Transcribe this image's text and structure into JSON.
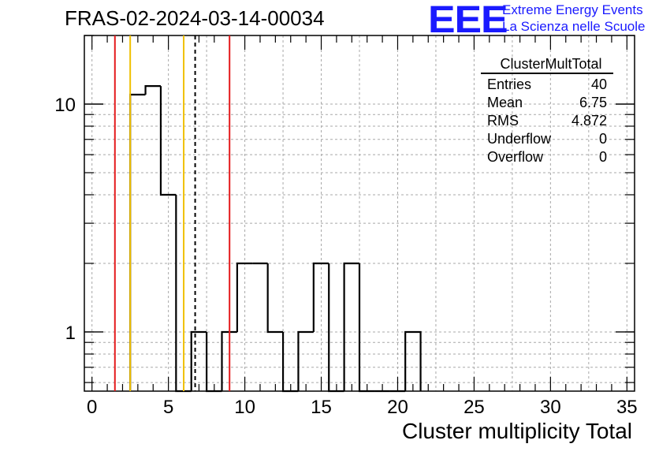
{
  "header": {
    "title": "FRAS-02-2024-03-14-00034",
    "logo_text": "EEE",
    "logo_line1": "Extreme Energy Events",
    "logo_line2": "La Scienza nelle Scuole"
  },
  "stats": {
    "title": "ClusterMultTotal",
    "rows": [
      {
        "label": "Entries",
        "value": "40"
      },
      {
        "label": "Mean",
        "value": "6.75"
      },
      {
        "label": "RMS",
        "value": "4.872"
      },
      {
        "label": "Underflow",
        "value": "0"
      },
      {
        "label": "Overflow",
        "value": "0"
      }
    ]
  },
  "chart_data": {
    "type": "bar",
    "title": "FRAS-02-2024-03-14-00034",
    "xlabel": "Cluster multiplicity Total",
    "ylabel": "",
    "xlim": [
      -0.5,
      35.5
    ],
    "ylim": [
      0.55,
      20
    ],
    "yscale": "log",
    "grid": true,
    "bin_width": 1,
    "x_ticks": [
      0,
      5,
      10,
      15,
      20,
      25,
      30,
      35
    ],
    "y_ticks": [
      1,
      10
    ],
    "bins": [
      {
        "x": 3,
        "value": 11
      },
      {
        "x": 4,
        "value": 12
      },
      {
        "x": 5,
        "value": 4
      },
      {
        "x": 6,
        "value": 0
      },
      {
        "x": 7,
        "value": 1
      },
      {
        "x": 8,
        "value": 0
      },
      {
        "x": 9,
        "value": 1
      },
      {
        "x": 10,
        "value": 2
      },
      {
        "x": 11,
        "value": 2
      },
      {
        "x": 12,
        "value": 1
      },
      {
        "x": 13,
        "value": 0
      },
      {
        "x": 14,
        "value": 1
      },
      {
        "x": 15,
        "value": 2
      },
      {
        "x": 16,
        "value": 0
      },
      {
        "x": 17,
        "value": 2
      },
      {
        "x": 18,
        "value": 0
      },
      {
        "x": 19,
        "value": 0
      },
      {
        "x": 20,
        "value": 0
      },
      {
        "x": 21,
        "value": 1
      }
    ],
    "reference_lines": [
      {
        "x": 1.5,
        "color": "#e41a1c",
        "style": "solid"
      },
      {
        "x": 2.5,
        "color": "#f0c000",
        "style": "solid"
      },
      {
        "x": 6.0,
        "color": "#f0c000",
        "style": "solid"
      },
      {
        "x": 6.75,
        "color": "#000000",
        "style": "dashed"
      },
      {
        "x": 9.0,
        "color": "#e41a1c",
        "style": "solid"
      }
    ]
  }
}
